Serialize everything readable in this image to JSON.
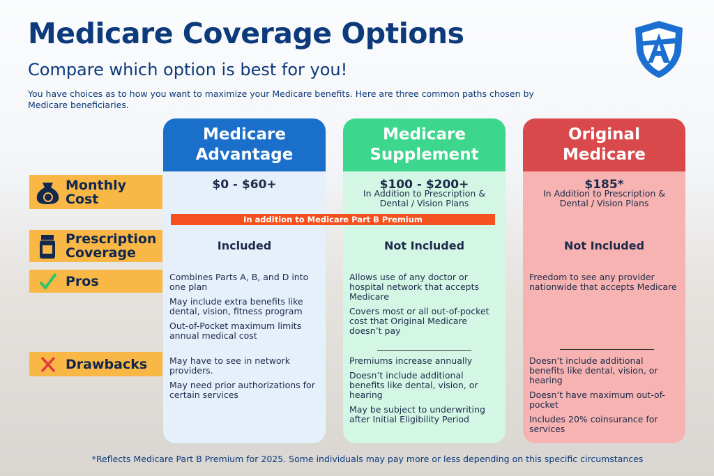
{
  "header": {
    "title": "Medicare Coverage Options",
    "subtitle": "Compare which option is best for you!",
    "intro": "You have choices as to how you want to maximize your Medicare benefits. Here are three common paths chosen by Medicare beneficiaries."
  },
  "row_labels": [
    "Monthly Cost",
    "Prescription Coverage",
    "Pros",
    "Drawbacks"
  ],
  "banner": "In addition to Medicare Part B Premium",
  "columns": [
    {
      "title": "Medicare Advantage",
      "cost": "$0 - $60+",
      "prescription": "Included",
      "pros": [
        "Combines Parts A, B, and D into one plan",
        "May include extra benefits like dental, vision, fitness program",
        "Out-of-Pocket maximum limits annual medical cost"
      ],
      "drawbacks": [
        "May have to see in network providers.",
        "May need prior authorizations for certain services"
      ]
    },
    {
      "title": "Medicare Supplement",
      "cost": "$100 - $200+",
      "cost_note": "In Addition to Prescription & Dental / Vision Plans",
      "prescription": "Not Included",
      "pros": [
        "Allows use of any doctor or hospital network that accepts Medicare",
        "Covers most or all out-of-pocket cost that Original Medicare doesn’t pay"
      ],
      "drawbacks": [
        "Premiums increase annually",
        "Doesn’t include additional benefits like dental, vision, or hearing",
        "May be subject to underwriting after Initial Eligibility Period"
      ]
    },
    {
      "title": "Original Medicare",
      "cost": "$185*",
      "cost_note": "In Addition to Prescription & Dental / Vision Plans",
      "prescription": "Not Included",
      "pros": [
        "Freedom to see any provider nationwide that accepts Medicare"
      ],
      "drawbacks": [
        "Doesn’t include additional benefits like dental, vision, or hearing",
        "Doesn’t have maximum out-of-pocket",
        "Includes 20% coinsurance for services"
      ]
    }
  ],
  "footnote": "*Reflects Medicare Part B Premium for 2025. Some individuals may pay more or less depending on this specific circumstances"
}
